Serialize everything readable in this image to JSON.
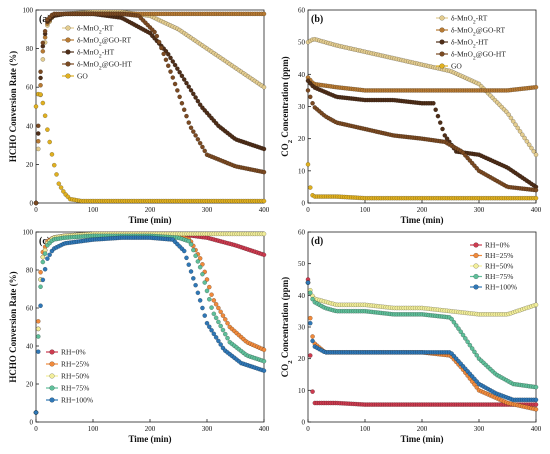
{
  "chart_data": [
    {
      "panel": "(a)",
      "type": "scatter",
      "xlabel": "Time (min)",
      "ylabel": "HCHO Conversion Rate (%)",
      "xlim": [
        0,
        400
      ],
      "ylim": [
        0,
        100
      ],
      "xticks": [
        0,
        100,
        200,
        300,
        400
      ],
      "yticks": [
        0,
        20,
        40,
        60,
        80,
        100
      ],
      "legend_position": "top-left",
      "series": [
        {
          "name": "δ-MnO₂-RT",
          "color": "#e3cc8f",
          "x": [
            0,
            5,
            10,
            20,
            30,
            50,
            100,
            150,
            200,
            250,
            300,
            330,
            360,
            400
          ],
          "y": [
            0,
            35,
            70,
            92,
            97,
            98,
            99,
            99,
            97,
            90,
            80,
            74,
            68,
            60
          ]
        },
        {
          "name": "δ-MnO₂@GO-RT",
          "color": "#b77a33",
          "x": [
            0,
            5,
            10,
            20,
            30,
            50,
            100,
            150,
            200,
            250,
            300,
            350,
            400
          ],
          "y": [
            0,
            40,
            75,
            93,
            97,
            98,
            98,
            98,
            98,
            98,
            98,
            98,
            98
          ]
        },
        {
          "name": "δ-MnO₂-HT",
          "color": "#4f2e18",
          "x": [
            0,
            5,
            10,
            20,
            30,
            50,
            100,
            150,
            200,
            230,
            260,
            290,
            320,
            350,
            400
          ],
          "y": [
            0,
            45,
            78,
            94,
            97,
            98,
            98,
            96,
            88,
            78,
            64,
            50,
            40,
            33,
            28
          ]
        },
        {
          "name": "δ-MnO₂@GO-HT",
          "color": "#7b4a22",
          "x": [
            0,
            5,
            10,
            20,
            30,
            50,
            100,
            150,
            180,
            210,
            240,
            270,
            300,
            350,
            400
          ],
          "y": [
            0,
            50,
            80,
            95,
            98,
            98,
            98,
            98,
            97,
            88,
            65,
            40,
            25,
            19,
            16
          ]
        },
        {
          "name": "GO",
          "color": "#e0b020",
          "x": [
            0,
            5,
            10,
            15,
            20,
            25,
            30,
            40,
            50,
            60,
            80,
            100,
            150,
            200,
            250,
            300,
            350,
            400
          ],
          "y": [
            50,
            58,
            55,
            47,
            38,
            30,
            22,
            10,
            5,
            2,
            1,
            1,
            1,
            1,
            1,
            1,
            1,
            1
          ]
        }
      ]
    },
    {
      "panel": "(b)",
      "type": "scatter",
      "xlabel": "Time (min)",
      "ylabel": "CO₂ Concentration (ppm)",
      "xlim": [
        0,
        400
      ],
      "ylim": [
        0,
        60
      ],
      "xticks": [
        0,
        100,
        200,
        300,
        400
      ],
      "yticks": [
        0,
        10,
        20,
        30,
        40,
        50,
        60
      ],
      "legend_position": "top-right",
      "series": [
        {
          "name": "δ-MnO₂-RT",
          "color": "#e3cc8f",
          "x": [
            0,
            10,
            50,
            100,
            150,
            200,
            250,
            300,
            350,
            400
          ],
          "y": [
            50,
            51,
            49,
            47,
            45,
            43,
            41,
            37,
            28,
            15
          ]
        },
        {
          "name": "δ-MnO₂@GO-RT",
          "color": "#b77a33",
          "x": [
            0,
            10,
            50,
            100,
            150,
            200,
            250,
            300,
            350,
            400
          ],
          "y": [
            39,
            37,
            36,
            35,
            35,
            35,
            35,
            35,
            35,
            36
          ]
        },
        {
          "name": "δ-MnO₂-HT",
          "color": "#4f2e18",
          "x": [
            0,
            10,
            50,
            100,
            150,
            200,
            220,
            240,
            260,
            300,
            350,
            400
          ],
          "y": [
            38,
            36,
            33,
            32,
            32,
            31,
            31,
            21,
            16,
            15,
            11,
            5
          ]
        },
        {
          "name": "δ-MnO₂@GO-HT",
          "color": "#7b4a22",
          "x": [
            0,
            10,
            30,
            50,
            100,
            150,
            200,
            240,
            270,
            300,
            350,
            400
          ],
          "y": [
            35,
            30,
            27,
            25,
            23,
            21,
            20,
            19,
            16,
            10,
            5,
            4
          ]
        },
        {
          "name": "GO",
          "color": "#e0b020",
          "x": [
            0,
            5,
            10,
            50,
            100,
            150,
            200,
            250,
            300,
            350,
            400
          ],
          "y": [
            12,
            3,
            2,
            2,
            1.5,
            1.5,
            1.5,
            1.5,
            1.5,
            1.5,
            1.5
          ]
        }
      ]
    },
    {
      "panel": "(c)",
      "type": "scatter",
      "xlabel": "Time (min)",
      "ylabel": "HCHO Conversion Rate (%)",
      "xlim": [
        0,
        400
      ],
      "ylim": [
        0,
        100
      ],
      "xticks": [
        0,
        100,
        200,
        300,
        400
      ],
      "yticks": [
        0,
        20,
        40,
        60,
        80,
        100
      ],
      "legend_position": "bottom-left",
      "series": [
        {
          "name": "RH=0%",
          "color": "#cc3b4f",
          "x": [
            0,
            5,
            10,
            20,
            30,
            50,
            100,
            150,
            200,
            250,
            300,
            350,
            400
          ],
          "y": [
            5,
            60,
            85,
            94,
            97,
            98,
            99,
            99,
            99,
            99,
            97,
            93,
            88
          ]
        },
        {
          "name": "RH=25%",
          "color": "#f08a3c",
          "x": [
            0,
            5,
            10,
            20,
            30,
            50,
            100,
            150,
            200,
            250,
            270,
            290,
            310,
            340,
            370,
            400
          ],
          "y": [
            5,
            65,
            88,
            95,
            97,
            98,
            99,
            99,
            99,
            98,
            96,
            85,
            65,
            50,
            42,
            38
          ]
        },
        {
          "name": "RH=50%",
          "color": "#f2ee9a",
          "x": [
            0,
            5,
            10,
            20,
            30,
            50,
            100,
            150,
            200,
            250,
            300,
            350,
            400
          ],
          "y": [
            5,
            60,
            85,
            94,
            97,
            98,
            99,
            99,
            99,
            99,
            99,
            99,
            99
          ]
        },
        {
          "name": "RH=75%",
          "color": "#5fbf9a",
          "x": [
            0,
            5,
            10,
            20,
            30,
            50,
            100,
            150,
            200,
            250,
            270,
            290,
            310,
            340,
            370,
            400
          ],
          "y": [
            5,
            55,
            82,
            93,
            96,
            97,
            98,
            98,
            98,
            97,
            95,
            80,
            58,
            42,
            35,
            32
          ]
        },
        {
          "name": "RH=100%",
          "color": "#2f77b6",
          "x": [
            0,
            5,
            10,
            20,
            30,
            50,
            100,
            150,
            200,
            240,
            260,
            280,
            300,
            330,
            360,
            400
          ],
          "y": [
            5,
            45,
            72,
            86,
            91,
            94,
            96,
            97,
            97,
            96,
            90,
            72,
            52,
            38,
            31,
            27
          ]
        }
      ]
    },
    {
      "panel": "(d)",
      "type": "scatter",
      "xlabel": "Time (min)",
      "ylabel": "CO₂ Concentration (ppm)",
      "xlim": [
        0,
        400
      ],
      "ylim": [
        0,
        60
      ],
      "xticks": [
        0,
        100,
        200,
        300,
        400
      ],
      "yticks": [
        0,
        10,
        20,
        30,
        40,
        50,
        60
      ],
      "legend_position": "top-right",
      "series": [
        {
          "name": "RH=0%",
          "color": "#cc3b4f",
          "x": [
            0,
            5,
            10,
            20,
            50,
            100,
            150,
            200,
            250,
            300,
            350,
            400
          ],
          "y": [
            45,
            15,
            6,
            6,
            6,
            5.5,
            5.5,
            5.5,
            5.5,
            5.5,
            5.5,
            5.5
          ]
        },
        {
          "name": "RH=25%",
          "color": "#f08a3c",
          "x": [
            0,
            5,
            10,
            30,
            50,
            100,
            150,
            200,
            250,
            270,
            300,
            350,
            400
          ],
          "y": [
            44,
            30,
            25,
            22,
            22,
            22,
            22,
            22,
            21,
            17,
            10,
            6,
            4
          ]
        },
        {
          "name": "RH=50%",
          "color": "#f2ee9a",
          "x": [
            0,
            5,
            10,
            30,
            50,
            100,
            150,
            200,
            250,
            300,
            350,
            400
          ],
          "y": [
            44,
            41,
            39,
            38,
            37,
            37,
            36,
            36,
            35,
            34,
            34,
            37
          ]
        },
        {
          "name": "RH=75%",
          "color": "#5fbf9a",
          "x": [
            0,
            5,
            10,
            30,
            50,
            100,
            150,
            200,
            250,
            270,
            300,
            330,
            360,
            400
          ],
          "y": [
            44,
            40,
            38,
            36,
            35,
            35,
            34,
            34,
            33,
            28,
            20,
            15,
            12,
            11
          ]
        },
        {
          "name": "RH=100%",
          "color": "#2f77b6",
          "x": [
            0,
            5,
            10,
            30,
            50,
            100,
            150,
            200,
            250,
            270,
            300,
            330,
            360,
            400
          ],
          "y": [
            44,
            28,
            24,
            22,
            22,
            22,
            22,
            22,
            22,
            18,
            12,
            9,
            7,
            7
          ]
        }
      ]
    }
  ]
}
